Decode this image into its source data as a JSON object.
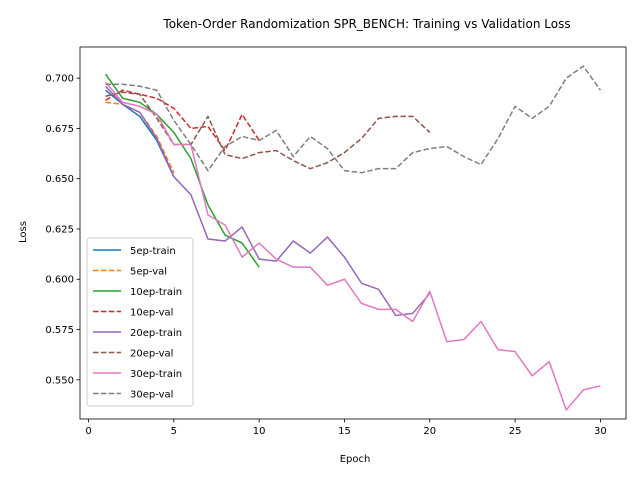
{
  "chart_data": {
    "type": "line",
    "title": "Token-Order Randomization SPR_BENCH: Training vs Validation Loss",
    "xlabel": "Epoch",
    "ylabel": "Loss",
    "xlim": [
      -0.5,
      31.5
    ],
    "ylim": [
      0.5305,
      0.7155
    ],
    "xticks": [
      0,
      5,
      10,
      15,
      20,
      25,
      30
    ],
    "yticks": [
      0.55,
      0.575,
      0.6,
      0.625,
      0.65,
      0.675,
      0.7
    ],
    "ytick_labels": [
      "0.550",
      "0.575",
      "0.600",
      "0.625",
      "0.650",
      "0.675",
      "0.700"
    ],
    "grid": false,
    "legend_position": "lower-left",
    "series": [
      {
        "name": "5ep-train",
        "color": "#1f77b4",
        "dash": "solid",
        "x": [
          1,
          2,
          3,
          4,
          5
        ],
        "y": [
          0.694,
          0.687,
          0.681,
          0.669,
          0.651
        ]
      },
      {
        "name": "5ep-val",
        "color": "#ff7f0e",
        "dash": "dashed",
        "x": [
          1,
          2,
          3,
          4,
          5
        ],
        "y": [
          0.688,
          0.687,
          0.683,
          0.671,
          0.653
        ]
      },
      {
        "name": "10ep-train",
        "color": "#2ca02c",
        "dash": "solid",
        "x": [
          1,
          2,
          3,
          4,
          5,
          6,
          7,
          8,
          9,
          10
        ],
        "y": [
          0.702,
          0.69,
          0.688,
          0.682,
          0.673,
          0.66,
          0.637,
          0.622,
          0.618,
          0.606
        ]
      },
      {
        "name": "10ep-val",
        "color": "#d62728",
        "dash": "dashed",
        "x": [
          1,
          2,
          3,
          4,
          5,
          6,
          7,
          8,
          9,
          10
        ],
        "y": [
          0.689,
          0.694,
          0.692,
          0.69,
          0.685,
          0.675,
          0.676,
          0.664,
          0.682,
          0.669
        ]
      },
      {
        "name": "20ep-train",
        "color": "#9467bd",
        "dash": "solid",
        "x": [
          1,
          2,
          3,
          4,
          5,
          6,
          7,
          8,
          9,
          10,
          11,
          12,
          13,
          14,
          15,
          16,
          17,
          18,
          19,
          20
        ],
        "y": [
          0.696,
          0.687,
          0.683,
          0.67,
          0.651,
          0.642,
          0.62,
          0.619,
          0.626,
          0.61,
          0.609,
          0.619,
          0.613,
          0.621,
          0.611,
          0.598,
          0.595,
          0.582,
          0.583,
          0.593
        ]
      },
      {
        "name": "20ep-val",
        "color": "#8c564b",
        "dash": "dashed",
        "x": [
          1,
          2,
          3,
          4,
          5,
          6,
          7,
          8,
          9,
          10,
          11,
          12,
          13,
          14,
          15,
          16,
          17,
          18,
          19,
          20
        ],
        "y": [
          0.691,
          0.693,
          0.692,
          0.68,
          0.667,
          0.667,
          0.681,
          0.662,
          0.66,
          0.663,
          0.664,
          0.659,
          0.655,
          0.658,
          0.663,
          0.67,
          0.68,
          0.681,
          0.681,
          0.673
        ]
      },
      {
        "name": "30ep-train",
        "color": "#e377c2",
        "dash": "solid",
        "x": [
          1,
          2,
          3,
          4,
          5,
          6,
          7,
          8,
          9,
          10,
          11,
          12,
          13,
          14,
          15,
          16,
          17,
          18,
          19,
          20,
          21,
          22,
          23,
          24,
          25,
          26,
          27,
          28,
          29,
          30
        ],
        "y": [
          0.698,
          0.688,
          0.686,
          0.682,
          0.667,
          0.667,
          0.632,
          0.627,
          0.611,
          0.618,
          0.61,
          0.606,
          0.606,
          0.597,
          0.6,
          0.588,
          0.585,
          0.585,
          0.579,
          0.594,
          0.569,
          0.57,
          0.579,
          0.565,
          0.564,
          0.552,
          0.559,
          0.535,
          0.545,
          0.547
        ]
      },
      {
        "name": "30ep-val",
        "color": "#7f7f7f",
        "dash": "dashed",
        "x": [
          1,
          2,
          3,
          4,
          5,
          6,
          7,
          8,
          9,
          10,
          11,
          12,
          13,
          14,
          15,
          16,
          17,
          18,
          19,
          20,
          21,
          22,
          23,
          24,
          25,
          26,
          27,
          28,
          29,
          30
        ],
        "y": [
          0.697,
          0.697,
          0.696,
          0.694,
          0.679,
          0.667,
          0.654,
          0.666,
          0.671,
          0.669,
          0.674,
          0.661,
          0.671,
          0.665,
          0.654,
          0.653,
          0.655,
          0.655,
          0.663,
          0.665,
          0.666,
          0.661,
          0.657,
          0.67,
          0.686,
          0.68,
          0.686,
          0.7,
          0.706,
          0.694
        ]
      }
    ]
  }
}
